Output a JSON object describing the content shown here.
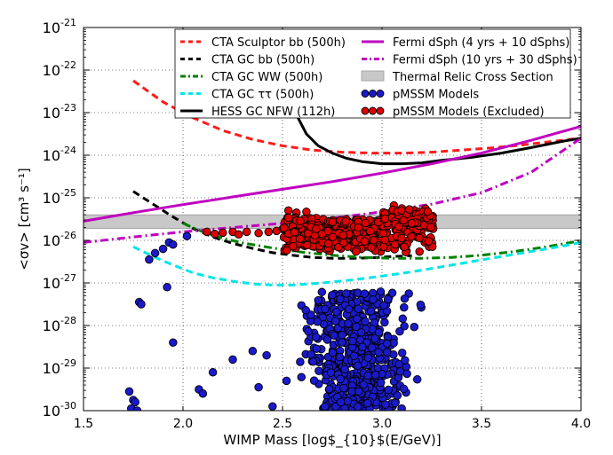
{
  "chart_data": {
    "type": "scatter",
    "xlabel": "WIMP Mass [log$_{10}$(E/GeV)]",
    "ylabel": "<σv> [cm³ s⁻¹]",
    "xlim": [
      1.5,
      4.0
    ],
    "ylim_log10": [
      -30,
      -21
    ],
    "x_ticks": [
      "1.5",
      "2.0",
      "2.5",
      "3.0",
      "3.5",
      "4.0"
    ],
    "y_ticks": [
      {
        "base": "10",
        "exp": "-30"
      },
      {
        "base": "10",
        "exp": "-29"
      },
      {
        "base": "10",
        "exp": "-28"
      },
      {
        "base": "10",
        "exp": "-27"
      },
      {
        "base": "10",
        "exp": "-26"
      },
      {
        "base": "10",
        "exp": "-25"
      },
      {
        "base": "10",
        "exp": "-24"
      },
      {
        "base": "10",
        "exp": "-23"
      },
      {
        "base": "10",
        "exp": "-22"
      },
      {
        "base": "10",
        "exp": "-21"
      }
    ],
    "grid": true,
    "legend_position": "top-right",
    "colors": {
      "cta_sculptor_bb": "#ff1a1a",
      "cta_gc_bb": "#000000",
      "cta_gc_ww": "#008000",
      "cta_gc_tautau": "#00e5e5",
      "hess_gc_nfw": "#000000",
      "fermi_4yr": "#bf00bf",
      "fermi_10yr": "#bf00bf",
      "thermal_band": "#c8c8c8",
      "pmssm": "#1a1acc",
      "pmssm_excluded": "#dd0000"
    },
    "series": [
      {
        "key": "cta_sculptor_bb",
        "name": "CTA Sculptor bb (500h)",
        "style": "dashed",
        "x": [
          1.75,
          1.9,
          2.05,
          2.2,
          2.35,
          2.5,
          2.65,
          2.8,
          2.95,
          3.1,
          3.25,
          3.4,
          3.55,
          3.7,
          3.85,
          4.0
        ],
        "log_y": [
          -22.25,
          -22.75,
          -23.12,
          -23.42,
          -23.63,
          -23.78,
          -23.88,
          -23.93,
          -23.95,
          -23.95,
          -23.93,
          -23.88,
          -23.83,
          -23.76,
          -23.68,
          -23.6
        ]
      },
      {
        "key": "cta_gc_bb",
        "name": "CTA GC bb (500h)",
        "style": "dashed",
        "x": [
          1.75,
          1.85,
          1.95,
          2.05,
          2.15,
          2.25,
          2.35,
          2.45,
          2.55,
          2.65,
          2.75,
          2.85,
          2.95,
          3.05,
          3.15
        ],
        "log_y": [
          -24.85,
          -25.15,
          -25.45,
          -25.72,
          -25.92,
          -26.07,
          -26.19,
          -26.29,
          -26.35,
          -26.4,
          -26.42,
          -26.42,
          -26.41,
          -26.38,
          -26.36
        ]
      },
      {
        "key": "cta_gc_ww",
        "name": "CTA GC WW (500h)",
        "style": "dashdot",
        "x": [
          2.0,
          2.1,
          2.2,
          2.3,
          2.45,
          2.6,
          2.75,
          2.9,
          3.05,
          3.2,
          3.35,
          3.5,
          3.65,
          3.8,
          3.95,
          4.0
        ],
        "log_y": [
          -25.6,
          -25.8,
          -25.95,
          -26.06,
          -26.18,
          -26.28,
          -26.35,
          -26.4,
          -26.42,
          -26.42,
          -26.4,
          -26.35,
          -26.27,
          -26.17,
          -26.05,
          -26.0
        ]
      },
      {
        "key": "cta_gc_tautau",
        "name": "CTA GC ττ (500h)",
        "style": "dashed",
        "x": [
          1.75,
          1.85,
          1.95,
          2.05,
          2.15,
          2.25,
          2.35,
          2.45,
          2.55,
          2.7,
          2.85,
          3.0,
          3.15,
          3.3,
          3.45,
          3.6,
          3.75,
          3.9,
          4.0
        ],
        "log_y": [
          -26.15,
          -26.38,
          -26.58,
          -26.76,
          -26.88,
          -26.96,
          -27.02,
          -27.05,
          -27.05,
          -27.0,
          -26.93,
          -26.84,
          -26.74,
          -26.62,
          -26.5,
          -26.38,
          -26.26,
          -26.14,
          -26.05
        ]
      },
      {
        "key": "hess_gc_nfw",
        "name": "HESS GC NFW (112h)",
        "style": "solid",
        "x": [
          2.57,
          2.62,
          2.68,
          2.75,
          2.82,
          2.9,
          3.0,
          3.1,
          3.2,
          3.3,
          3.45,
          3.6,
          3.75,
          3.9,
          4.0
        ],
        "log_y": [
          -23.05,
          -23.5,
          -23.78,
          -23.95,
          -24.07,
          -24.15,
          -24.2,
          -24.2,
          -24.18,
          -24.12,
          -24.05,
          -23.95,
          -23.82,
          -23.68,
          -23.6
        ]
      },
      {
        "key": "fermi_4yr",
        "name": "Fermi dSph (4 yrs + 10 dSphs)",
        "style": "solid",
        "x": [
          1.5,
          1.75,
          2.0,
          2.25,
          2.5,
          2.75,
          3.0,
          3.25,
          3.5,
          3.75,
          4.0
        ],
        "log_y": [
          -25.55,
          -25.35,
          -25.16,
          -24.98,
          -24.8,
          -24.62,
          -24.42,
          -24.2,
          -23.95,
          -23.65,
          -23.32
        ]
      },
      {
        "key": "fermi_10yr",
        "name": "Fermi dSph (10 yrs + 30 dSphs)",
        "style": "dashdot",
        "x": [
          1.5,
          1.75,
          2.0,
          2.25,
          2.5,
          2.75,
          3.0,
          3.25,
          3.5,
          3.75,
          4.0
        ],
        "log_y": [
          -26.05,
          -25.92,
          -25.8,
          -25.7,
          -25.6,
          -25.48,
          -25.33,
          -25.15,
          -24.88,
          -24.4,
          -23.6
        ]
      }
    ],
    "band": {
      "key": "thermal_band",
      "name": "Thermal Relic Cross Section",
      "log_y_range": [
        -25.72,
        -25.4
      ]
    },
    "scatter": [
      {
        "key": "pmssm",
        "name": "pMSSM Models",
        "seed": 13,
        "count": 560
      },
      {
        "key": "pmssm_excluded",
        "name": "pMSSM Models (Excluded)",
        "seed": 29,
        "count": 430
      }
    ],
    "pmssm_fixed_points": [
      [
        1.73,
        -29.55
      ],
      [
        1.75,
        -29.75
      ],
      [
        1.74,
        -29.95
      ],
      [
        1.76,
        -29.8
      ],
      [
        1.77,
        -30.0
      ],
      [
        1.76,
        -30.15
      ],
      [
        1.78,
        -27.45
      ],
      [
        1.79,
        -27.5
      ],
      [
        1.83,
        -26.45
      ],
      [
        1.86,
        -26.3
      ],
      [
        1.9,
        -26.2
      ],
      [
        1.93,
        -26.05
      ],
      [
        1.95,
        -26.1
      ],
      [
        2.02,
        -25.9
      ],
      [
        1.92,
        -27.1
      ],
      [
        1.95,
        -28.4
      ],
      [
        2.08,
        -29.5
      ],
      [
        2.1,
        -29.6
      ],
      [
        2.15,
        -29.1
      ],
      [
        2.25,
        -28.8
      ],
      [
        2.35,
        -28.6
      ],
      [
        2.38,
        -29.45
      ],
      [
        2.42,
        -28.7
      ],
      [
        2.45,
        -29.9
      ],
      [
        2.52,
        -29.3
      ]
    ]
  }
}
